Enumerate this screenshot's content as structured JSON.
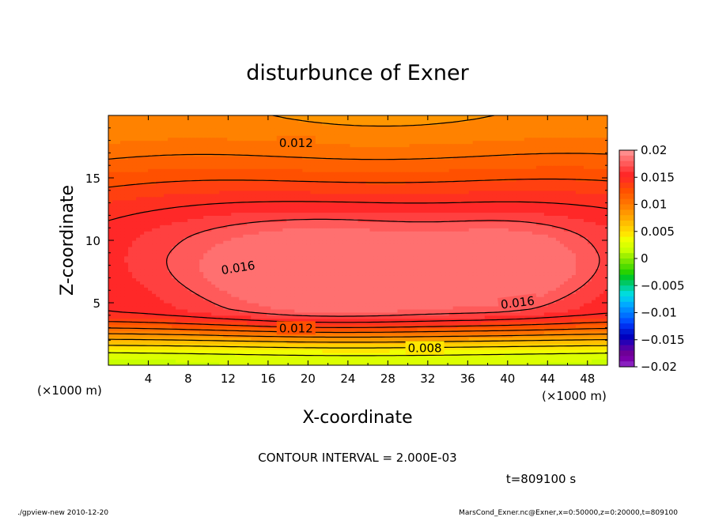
{
  "chart_data": {
    "type": "heatmap",
    "subtype": "filled-contour",
    "title": "disturbunce of Exner",
    "xlabel": "X-coordinate",
    "ylabel": "Z-coordinate",
    "x_unit": "(×1000 m)",
    "y_unit": "(×1000 m)",
    "xlim": [
      0,
      50
    ],
    "ylim": [
      0,
      20
    ],
    "x_ticks": [
      4,
      8,
      12,
      16,
      20,
      24,
      28,
      32,
      36,
      40,
      44,
      48
    ],
    "y_ticks": [
      5,
      10,
      15
    ],
    "contour_interval_text": "CONTOUR INTERVAL = 2.000E-03",
    "time_text": "t=809100 s",
    "contour_labels": [
      {
        "text": "0.012",
        "x": 18.8,
        "y": 17.8
      },
      {
        "text": "0.016",
        "x": 13.0,
        "y": 7.8
      },
      {
        "text": "0.016",
        "x": 41.0,
        "y": 5.0
      },
      {
        "text": "0.012",
        "x": 18.8,
        "y": 2.95
      },
      {
        "text": "0.008",
        "x": 31.7,
        "y": 1.35
      }
    ],
    "levels": [
      {
        "from": 0.0,
        "to": 0.001,
        "color": "#c8ff00"
      },
      {
        "from": 0.001,
        "to": 0.002,
        "color": "#dcff00"
      },
      {
        "from": 0.002,
        "to": 0.003,
        "color": "#f0ff00"
      },
      {
        "from": 0.003,
        "to": 0.004,
        "color": "#ffe600"
      },
      {
        "from": 0.004,
        "to": 0.005,
        "color": "#ffd200"
      },
      {
        "from": 0.005,
        "to": 0.006,
        "color": "#ffbe00"
      },
      {
        "from": 0.006,
        "to": 0.007,
        "color": "#ffa800"
      },
      {
        "from": 0.007,
        "to": 0.008,
        "color": "#ff9600"
      },
      {
        "from": 0.008,
        "to": 0.009,
        "color": "#ff8200"
      },
      {
        "from": 0.009,
        "to": 0.01,
        "color": "#ff7000"
      },
      {
        "from": 0.01,
        "to": 0.011,
        "color": "#ff6000"
      },
      {
        "from": 0.011,
        "to": 0.012,
        "color": "#ff5000"
      },
      {
        "from": 0.012,
        "to": 0.013,
        "color": "#ff4010"
      },
      {
        "from": 0.013,
        "to": 0.014,
        "color": "#ff3020"
      },
      {
        "from": 0.014,
        "to": 0.015,
        "color": "#ff2828"
      },
      {
        "from": 0.015,
        "to": 0.016,
        "color": "#ff4040"
      },
      {
        "from": 0.016,
        "to": 0.017,
        "color": "#ff5a5a"
      },
      {
        "from": 0.017,
        "to": 0.018,
        "color": "#ff7070"
      }
    ],
    "colorbar": {
      "tick_labels": [
        "0.02",
        "0.015",
        "0.01",
        "0.005",
        "0",
        "−0.005",
        "−0.01",
        "−0.015",
        "−0.02"
      ],
      "tick_values": [
        0.02,
        0.015,
        0.01,
        0.005,
        0,
        -0.005,
        -0.01,
        -0.015,
        -0.02
      ],
      "range": [
        -0.02,
        0.02
      ],
      "bands": [
        "#ff8c8c",
        "#ff7070",
        "#ff5a5a",
        "#ff4040",
        "#ff2828",
        "#ff3020",
        "#ff4010",
        "#ff5000",
        "#ff6000",
        "#ff7000",
        "#ff8200",
        "#ff9600",
        "#ffa800",
        "#ffbe00",
        "#ffd200",
        "#ffe600",
        "#f0ff00",
        "#dcff00",
        "#c8ff00",
        "#a0f000",
        "#78e600",
        "#50dc00",
        "#28d200",
        "#00c828",
        "#00c864",
        "#00d2a0",
        "#00dcdc",
        "#00c8f0",
        "#00aaff",
        "#008cff",
        "#0070ff",
        "#0050ff",
        "#0030f0",
        "#0018d2",
        "#0000be",
        "#2800b4",
        "#5000a8",
        "#6e0096",
        "#7a00aa",
        "#8a20c0"
      ]
    },
    "grid": false,
    "legend": "colorbar-right"
  },
  "footer": {
    "left": "./gpview-new   2010-12-20",
    "right": "MarsCond_Exner.nc@Exner,x=0:50000,z=0:20000,t=809100"
  }
}
